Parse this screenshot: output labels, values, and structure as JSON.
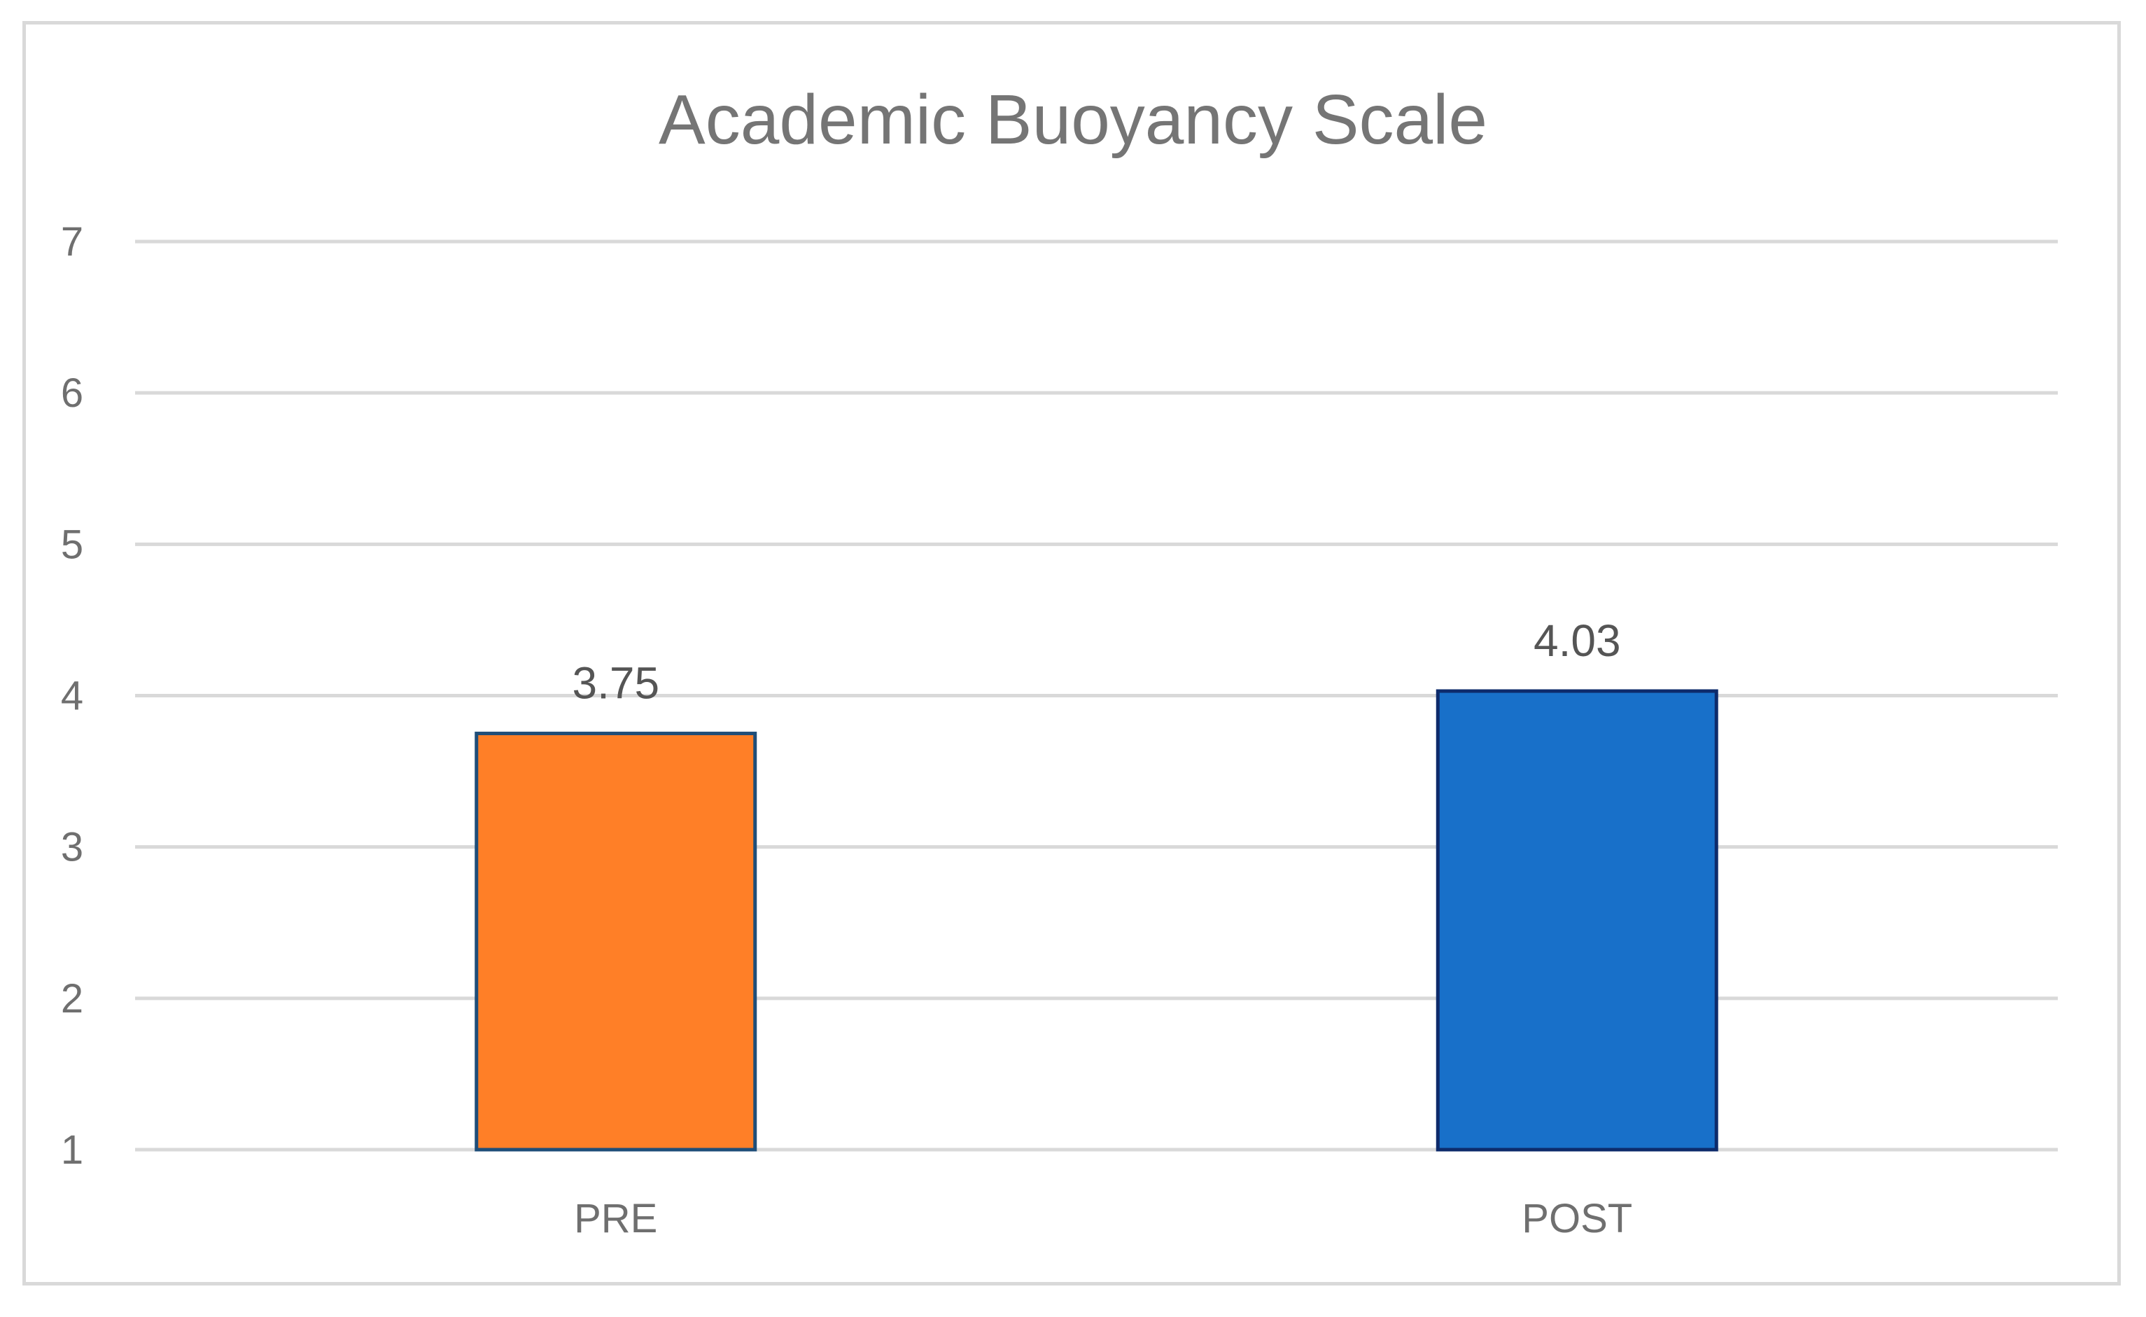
{
  "chart_data": {
    "type": "bar",
    "title": "Academic Buoyancy Scale",
    "xlabel": "",
    "ylabel": "",
    "categories": [
      "PRE",
      "POST"
    ],
    "values": [
      3.75,
      4.03
    ],
    "data_labels": [
      "3.75",
      "4.03"
    ],
    "ylim": [
      1,
      7
    ],
    "yticks": [
      1,
      2,
      3,
      4,
      5,
      6,
      7
    ],
    "grid": true,
    "legend": "none",
    "colors": {
      "PRE": "#ff7f27",
      "POST": "#1870c9",
      "PRE_outline": "#1f4e79",
      "POST_outline": "#0d2b6b",
      "grid": "#d9d9d9",
      "text": "#757575"
    }
  }
}
